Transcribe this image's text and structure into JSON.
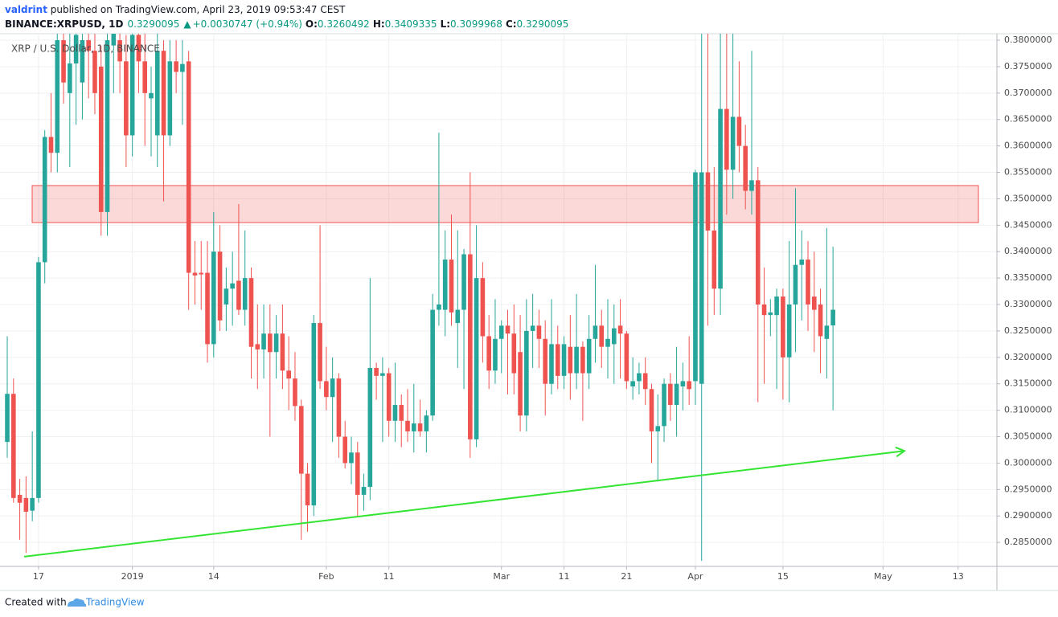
{
  "chart_data": {
    "type": "candlestick",
    "publisher": "valdrint",
    "published": " published on TradingView.com, April 23, 2019 09:53:47 CEST",
    "symbol": "BINANCE:XRPUSD, 1D",
    "last_price": "0.3290095",
    "change_arrow": "▲",
    "change": "+0.0030747 (+0.94%)",
    "o_label": "O:",
    "o_value": "0.3260492",
    "h_label": "H:",
    "h_value": "0.3409335",
    "l_label": "L:",
    "l_value": "0.3099968",
    "c_label": "C:",
    "c_value": "0.3290095",
    "legend": "XRP / U.S. Dollar, 1D, BINANCE",
    "footer": "Created with",
    "footer_brand": "TradingView",
    "up_color": "#26a69a",
    "down_color": "#ef5350",
    "grid": true,
    "zone": {
      "low": 0.3455,
      "high": 0.3525,
      "color": "#ef5350"
    },
    "trendline": {
      "values": [
        0.2823,
        0.3023
      ],
      "color": "#33e433"
    },
    "xlim": [
      -1.16,
      158.2
    ],
    "xticks": [
      {
        "value": 5,
        "label": "17"
      },
      {
        "value": 20,
        "label": "2019"
      },
      {
        "value": 33,
        "label": "14"
      },
      {
        "value": 51,
        "label": "Feb"
      },
      {
        "value": 61,
        "label": "11"
      },
      {
        "value": 79,
        "label": "Mar"
      },
      {
        "value": 89,
        "label": "11"
      },
      {
        "value": 99,
        "label": "21"
      },
      {
        "value": 110,
        "label": "Apr"
      },
      {
        "value": 124,
        "label": "15"
      },
      {
        "value": 140,
        "label": "May"
      },
      {
        "value": 152,
        "label": "13"
      }
    ],
    "ylim": [
      0.28046,
      0.38122
    ],
    "yticks": [
      {
        "value": 0.285,
        "label": "0.2850000"
      },
      {
        "value": 0.29,
        "label": "0.2900000"
      },
      {
        "value": 0.295,
        "label": "0.2950000"
      },
      {
        "value": 0.3,
        "label": "0.3000000"
      },
      {
        "value": 0.305,
        "label": "0.3050000"
      },
      {
        "value": 0.31,
        "label": "0.3100000"
      },
      {
        "value": 0.315,
        "label": "0.3150000"
      },
      {
        "value": 0.32,
        "label": "0.3200000"
      },
      {
        "value": 0.325,
        "label": "0.3250000"
      },
      {
        "value": 0.33,
        "label": "0.3300000"
      },
      {
        "value": 0.335,
        "label": "0.3350000"
      },
      {
        "value": 0.34,
        "label": "0.3400000"
      },
      {
        "value": 0.345,
        "label": "0.3450000"
      },
      {
        "value": 0.35,
        "label": "0.3500000"
      },
      {
        "value": 0.355,
        "label": "0.3550000"
      },
      {
        "value": 0.36,
        "label": "0.3600000"
      },
      {
        "value": 0.365,
        "label": "0.3650000"
      },
      {
        "value": 0.37,
        "label": "0.3700000"
      },
      {
        "value": 0.375,
        "label": "0.3750000"
      },
      {
        "value": 0.38,
        "label": "0.3800000"
      }
    ],
    "open": [
      0.304,
      0.3131,
      0.294,
      0.2934,
      0.291,
      0.2934,
      0.338,
      0.3617,
      0.3587,
      0.38,
      0.37,
      0.3756,
      0.372,
      0.38,
      0.378,
      0.375,
      0.3475,
      0.379,
      0.38,
      0.376,
      0.362,
      0.381,
      0.376,
      0.369,
      0.362,
      0.378,
      0.362,
      0.376,
      0.374,
      0.376,
      0.336,
      0.336,
      0.336,
      0.3225,
      0.34,
      0.33,
      0.333,
      0.3345,
      0.329,
      0.335,
      0.3225,
      0.3215,
      0.3245,
      0.321,
      0.3245,
      0.3175,
      0.316,
      0.3108,
      0.298,
      0.292,
      0.3265,
      0.3155,
      0.3125,
      0.316,
      0.305,
      0.3,
      0.302,
      0.294,
      0.2955,
      0.318,
      0.3165,
      0.317,
      0.308,
      0.311,
      0.308,
      0.306,
      0.3075,
      0.306,
      0.309,
      0.329,
      0.329,
      0.3385,
      0.3265,
      0.329,
      0.3395,
      0.3045,
      0.335,
      0.324,
      0.3175,
      0.3235,
      0.326,
      0.3245,
      0.321,
      0.309,
      0.325,
      0.326,
      0.3235,
      0.315,
      0.3225,
      0.3165,
      0.322,
      0.317,
      0.322,
      0.317,
      0.3235,
      0.326,
      0.322,
      0.3225,
      0.326,
      0.3245,
      0.3145,
      0.3155,
      0.317,
      0.314,
      0.306,
      0.307,
      0.315,
      0.311,
      0.3145,
      0.3155,
      0.3155,
      0.315,
      0.355,
      0.344,
      0.333,
      0.367,
      0.3555,
      0.3655,
      0.36,
      0.3515,
      0.3535,
      0.33,
      0.328,
      0.328,
      0.3315,
      0.32,
      0.33,
      0.3375,
      0.3385,
      0.3315,
      0.33,
      0.3235,
      0.3260492
    ],
    "high": [
      0.324,
      0.316,
      0.297,
      0.2975,
      0.306,
      0.339,
      0.363,
      0.37,
      0.385,
      0.385,
      0.385,
      0.385,
      0.383,
      0.385,
      0.383,
      0.379,
      0.385,
      0.385,
      0.385,
      0.381,
      0.385,
      0.385,
      0.382,
      0.375,
      0.382,
      0.38,
      0.38,
      0.38,
      0.38,
      0.378,
      0.342,
      0.342,
      0.342,
      0.3475,
      0.345,
      0.337,
      0.34,
      0.349,
      0.344,
      0.337,
      0.33,
      0.33,
      0.33,
      0.328,
      0.33,
      0.324,
      0.321,
      0.312,
      0.3,
      0.328,
      0.345,
      0.322,
      0.32,
      0.317,
      0.308,
      0.305,
      0.304,
      0.298,
      0.335,
      0.319,
      0.32,
      0.318,
      0.319,
      0.313,
      0.314,
      0.315,
      0.312,
      0.31,
      0.332,
      0.3625,
      0.344,
      0.347,
      0.344,
      0.3405,
      0.355,
      0.345,
      0.338,
      0.328,
      0.331,
      0.327,
      0.329,
      0.33,
      0.328,
      0.331,
      0.332,
      0.329,
      0.327,
      0.331,
      0.326,
      0.324,
      0.328,
      0.332,
      0.323,
      0.328,
      0.3375,
      0.329,
      0.331,
      0.33,
      0.331,
      0.325,
      0.32,
      0.319,
      0.32,
      0.315,
      0.313,
      0.316,
      0.317,
      0.322,
      0.319,
      0.324,
      0.3555,
      0.385,
      0.385,
      0.356,
      0.385,
      0.385,
      0.385,
      0.376,
      0.364,
      0.378,
      0.356,
      0.337,
      0.331,
      0.333,
      0.333,
      0.342,
      0.352,
      0.344,
      0.342,
      0.34,
      0.333,
      0.3445,
      0.3409335
    ],
    "low": [
      0.301,
      0.2925,
      0.2855,
      0.283,
      0.289,
      0.2925,
      0.334,
      0.355,
      0.355,
      0.368,
      0.356,
      0.364,
      0.365,
      0.369,
      0.366,
      0.343,
      0.343,
      0.37,
      0.37,
      0.356,
      0.358,
      0.37,
      0.36,
      0.358,
      0.356,
      0.3495,
      0.36,
      0.37,
      0.364,
      0.329,
      0.33,
      0.329,
      0.319,
      0.32,
      0.325,
      0.325,
      0.326,
      0.328,
      0.326,
      0.316,
      0.314,
      0.316,
      0.305,
      0.316,
      0.314,
      0.31,
      0.308,
      0.2855,
      0.287,
      0.29,
      0.314,
      0.31,
      0.304,
      0.301,
      0.299,
      0.296,
      0.29,
      0.291,
      0.293,
      0.312,
      0.304,
      0.305,
      0.304,
      0.303,
      0.304,
      0.302,
      0.305,
      0.302,
      0.308,
      0.326,
      0.324,
      0.326,
      0.318,
      0.314,
      0.301,
      0.303,
      0.319,
      0.314,
      0.315,
      0.317,
      0.313,
      0.313,
      0.306,
      0.306,
      0.318,
      0.318,
      0.309,
      0.313,
      0.314,
      0.314,
      0.312,
      0.314,
      0.308,
      0.314,
      0.319,
      0.318,
      0.316,
      0.315,
      0.316,
      0.314,
      0.312,
      0.313,
      0.311,
      0.3,
      0.2965,
      0.304,
      0.308,
      0.305,
      0.31,
      0.311,
      0.311,
      0.2815,
      0.326,
      0.328,
      0.328,
      0.347,
      0.35,
      0.355,
      0.348,
      0.347,
      0.3115,
      0.315,
      0.324,
      0.314,
      0.312,
      0.3115,
      0.321,
      0.327,
      0.325,
      0.321,
      0.317,
      0.316,
      0.3099968
    ],
    "close": [
      0.3131,
      0.2934,
      0.2925,
      0.2908,
      0.2934,
      0.338,
      0.3617,
      0.3587,
      0.38,
      0.372,
      0.3756,
      0.381,
      0.38,
      0.378,
      0.37,
      0.3475,
      0.38,
      0.385,
      0.376,
      0.362,
      0.381,
      0.376,
      0.37,
      0.37,
      0.378,
      0.362,
      0.376,
      0.374,
      0.3755,
      0.336,
      0.3355,
      0.3357,
      0.3225,
      0.34,
      0.327,
      0.333,
      0.334,
      0.329,
      0.335,
      0.322,
      0.3215,
      0.3245,
      0.321,
      0.3245,
      0.3175,
      0.316,
      0.3108,
      0.298,
      0.292,
      0.3265,
      0.3155,
      0.3125,
      0.316,
      0.305,
      0.3,
      0.302,
      0.294,
      0.2955,
      0.318,
      0.3165,
      0.317,
      0.308,
      0.311,
      0.308,
      0.306,
      0.3075,
      0.306,
      0.309,
      0.329,
      0.33,
      0.3385,
      0.3285,
      0.329,
      0.3395,
      0.3045,
      0.335,
      0.324,
      0.3175,
      0.3235,
      0.326,
      0.3245,
      0.317,
      0.309,
      0.325,
      0.326,
      0.3235,
      0.315,
      0.3225,
      0.3165,
      0.3225,
      0.317,
      0.322,
      0.317,
      0.3235,
      0.326,
      0.322,
      0.3235,
      0.3255,
      0.3245,
      0.3155,
      0.3155,
      0.317,
      0.314,
      0.306,
      0.307,
      0.315,
      0.311,
      0.315,
      0.3155,
      0.314,
      0.355,
      0.355,
      0.344,
      0.333,
      0.367,
      0.3555,
      0.3655,
      0.36,
      0.3515,
      0.3535,
      0.33,
      0.328,
      0.3285,
      0.3315,
      0.32,
      0.33,
      0.3375,
      0.3385,
      0.33,
      0.329,
      0.324,
      0.326,
      0.3290095
    ]
  }
}
